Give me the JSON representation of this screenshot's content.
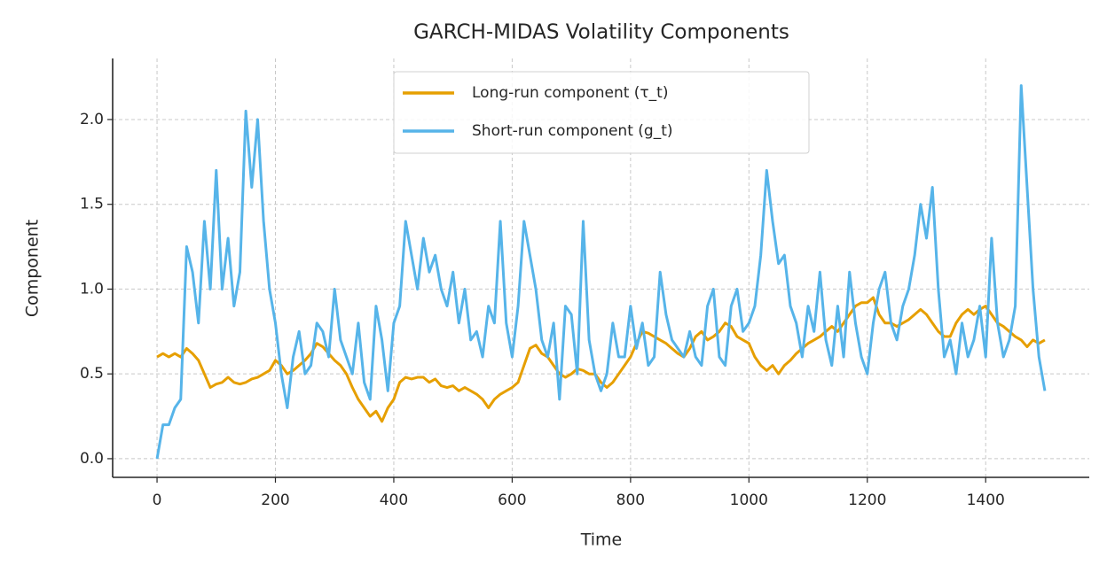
{
  "chart_data": {
    "type": "line",
    "title": "GARCH-MIDAS Volatility Components",
    "x_label": "Time",
    "y_label": "Component",
    "x": [
      0,
      10,
      20,
      30,
      40,
      50,
      60,
      70,
      80,
      90,
      100,
      110,
      120,
      130,
      140,
      150,
      160,
      170,
      180,
      190,
      200,
      210,
      220,
      230,
      240,
      250,
      260,
      270,
      280,
      290,
      300,
      310,
      320,
      330,
      340,
      350,
      360,
      370,
      380,
      390,
      400,
      410,
      420,
      430,
      440,
      450,
      460,
      470,
      480,
      490,
      500,
      510,
      520,
      530,
      540,
      550,
      560,
      570,
      580,
      590,
      600,
      610,
      620,
      630,
      640,
      650,
      660,
      670,
      680,
      690,
      700,
      710,
      720,
      730,
      740,
      750,
      760,
      770,
      780,
      790,
      800,
      810,
      820,
      830,
      840,
      850,
      860,
      870,
      880,
      890,
      900,
      910,
      920,
      930,
      940,
      950,
      960,
      970,
      980,
      990,
      1000,
      1010,
      1020,
      1030,
      1040,
      1050,
      1060,
      1070,
      1080,
      1090,
      1100,
      1110,
      1120,
      1130,
      1140,
      1150,
      1160,
      1170,
      1180,
      1190,
      1200,
      1210,
      1220,
      1230,
      1240,
      1250,
      1260,
      1270,
      1280,
      1290,
      1300,
      1310,
      1320,
      1330,
      1340,
      1350,
      1360,
      1370,
      1380,
      1390,
      1400,
      1410,
      1420,
      1430,
      1440,
      1450,
      1460,
      1470,
      1480,
      1490,
      1500
    ],
    "series": [
      {
        "name": "Long-run component (τ_t)",
        "color": "#E69F00",
        "values": [
          0.6,
          0.62,
          0.6,
          0.62,
          0.6,
          0.65,
          0.62,
          0.58,
          0.5,
          0.42,
          0.44,
          0.45,
          0.48,
          0.45,
          0.44,
          0.45,
          0.47,
          0.48,
          0.5,
          0.52,
          0.58,
          0.55,
          0.5,
          0.52,
          0.55,
          0.58,
          0.62,
          0.68,
          0.66,
          0.62,
          0.58,
          0.55,
          0.5,
          0.42,
          0.35,
          0.3,
          0.25,
          0.28,
          0.22,
          0.3,
          0.35,
          0.45,
          0.48,
          0.47,
          0.48,
          0.48,
          0.45,
          0.47,
          0.43,
          0.42,
          0.43,
          0.4,
          0.42,
          0.4,
          0.38,
          0.35,
          0.3,
          0.35,
          0.38,
          0.4,
          0.42,
          0.45,
          0.55,
          0.65,
          0.67,
          0.62,
          0.6,
          0.55,
          0.5,
          0.48,
          0.5,
          0.53,
          0.52,
          0.5,
          0.5,
          0.45,
          0.42,
          0.45,
          0.5,
          0.55,
          0.6,
          0.68,
          0.75,
          0.74,
          0.72,
          0.7,
          0.68,
          0.65,
          0.62,
          0.6,
          0.65,
          0.72,
          0.75,
          0.7,
          0.72,
          0.75,
          0.8,
          0.78,
          0.72,
          0.7,
          0.68,
          0.6,
          0.55,
          0.52,
          0.55,
          0.5,
          0.55,
          0.58,
          0.62,
          0.65,
          0.68,
          0.7,
          0.72,
          0.75,
          0.78,
          0.75,
          0.8,
          0.85,
          0.9,
          0.92,
          0.92,
          0.95,
          0.85,
          0.8,
          0.8,
          0.78,
          0.8,
          0.82,
          0.85,
          0.88,
          0.85,
          0.8,
          0.75,
          0.72,
          0.72,
          0.8,
          0.85,
          0.88,
          0.85,
          0.88,
          0.9,
          0.85,
          0.8,
          0.78,
          0.75,
          0.72,
          0.7,
          0.66,
          0.7,
          0.68,
          0.7
        ]
      },
      {
        "name": "Short-run component (g_t)",
        "color": "#56B4E9",
        "values": [
          0.0,
          0.2,
          0.2,
          0.3,
          0.35,
          1.25,
          1.1,
          0.8,
          1.4,
          1.0,
          1.7,
          1.0,
          1.3,
          0.9,
          1.1,
          2.05,
          1.6,
          2.0,
          1.4,
          1.0,
          0.8,
          0.5,
          0.3,
          0.6,
          0.75,
          0.5,
          0.55,
          0.8,
          0.75,
          0.6,
          1.0,
          0.7,
          0.6,
          0.5,
          0.8,
          0.45,
          0.35,
          0.9,
          0.7,
          0.4,
          0.8,
          0.9,
          1.4,
          1.2,
          1.0,
          1.3,
          1.1,
          1.2,
          1.0,
          0.9,
          1.1,
          0.8,
          1.0,
          0.7,
          0.75,
          0.6,
          0.9,
          0.8,
          1.4,
          0.8,
          0.6,
          0.9,
          1.4,
          1.2,
          1.0,
          0.7,
          0.6,
          0.8,
          0.35,
          0.9,
          0.85,
          0.5,
          1.4,
          0.7,
          0.5,
          0.4,
          0.5,
          0.8,
          0.6,
          0.6,
          0.9,
          0.65,
          0.8,
          0.55,
          0.6,
          1.1,
          0.85,
          0.7,
          0.65,
          0.6,
          0.75,
          0.6,
          0.55,
          0.9,
          1.0,
          0.6,
          0.55,
          0.9,
          1.0,
          0.75,
          0.8,
          0.9,
          1.2,
          1.7,
          1.4,
          1.15,
          1.2,
          0.9,
          0.8,
          0.6,
          0.9,
          0.75,
          1.1,
          0.7,
          0.55,
          0.9,
          0.6,
          1.1,
          0.8,
          0.6,
          0.5,
          0.8,
          1.0,
          1.1,
          0.8,
          0.7,
          0.9,
          1.0,
          1.2,
          1.5,
          1.3,
          1.6,
          1.0,
          0.6,
          0.7,
          0.5,
          0.8,
          0.6,
          0.7,
          0.9,
          0.6,
          1.3,
          0.8,
          0.6,
          0.7,
          0.9,
          2.2,
          1.6,
          1.0,
          0.6,
          0.4
        ]
      }
    ],
    "xlim": [
      -75,
      1575
    ],
    "ylim": [
      -0.11,
      2.36
    ],
    "xticks": [
      0,
      200,
      400,
      600,
      800,
      1000,
      1200,
      1400
    ],
    "yticks": [
      {
        "value": 0,
        "label": "0.0"
      },
      0.5,
      {
        "value": 1,
        "label": "1.0"
      },
      1.5,
      {
        "value": 2,
        "label": "2.0"
      }
    ],
    "grid": true,
    "legend": "upper center"
  }
}
